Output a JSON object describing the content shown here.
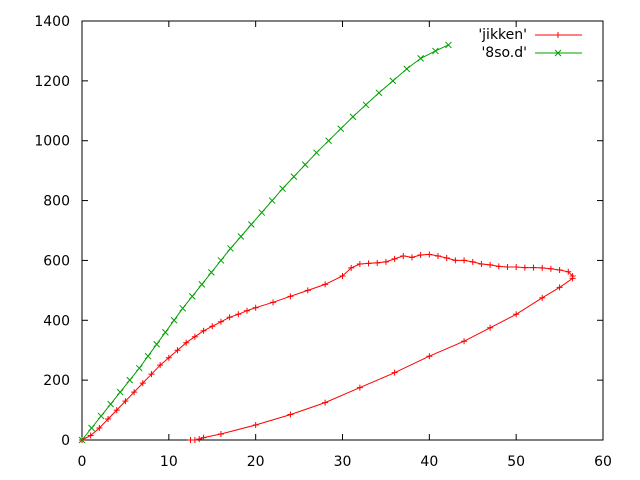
{
  "chart_data": {
    "type": "line",
    "title": "",
    "xlabel": "",
    "ylabel": "",
    "xlim": [
      0,
      60
    ],
    "ylim": [
      0,
      1400
    ],
    "x_ticks": [
      "0",
      "10",
      "20",
      "30",
      "40",
      "50",
      "60"
    ],
    "y_ticks": [
      "0",
      "200",
      "400",
      "600",
      "800",
      "1000",
      "1200",
      "1400"
    ],
    "grid": false,
    "legend_position": "top-right",
    "series": [
      {
        "name": "'jikken'",
        "color": "#ff0000",
        "marker": "plus",
        "points": [
          [
            0,
            0
          ],
          [
            1,
            15
          ],
          [
            2,
            40
          ],
          [
            3,
            70
          ],
          [
            4,
            100
          ],
          [
            5,
            130
          ],
          [
            6,
            160
          ],
          [
            7,
            190
          ],
          [
            8,
            220
          ],
          [
            9,
            250
          ],
          [
            10,
            275
          ],
          [
            11,
            300
          ],
          [
            12,
            325
          ],
          [
            13,
            345
          ],
          [
            14,
            365
          ],
          [
            15,
            380
          ],
          [
            16,
            395
          ],
          [
            17,
            410
          ],
          [
            18,
            420
          ],
          [
            19,
            432
          ],
          [
            20,
            442
          ],
          [
            22,
            460
          ],
          [
            24,
            480
          ],
          [
            26,
            500
          ],
          [
            28,
            520
          ],
          [
            30,
            548
          ],
          [
            31,
            575
          ],
          [
            32,
            588
          ],
          [
            33,
            590
          ],
          [
            34,
            592
          ],
          [
            35,
            595
          ],
          [
            36,
            605
          ],
          [
            37,
            615
          ],
          [
            38,
            610
          ],
          [
            39,
            618
          ],
          [
            40,
            620
          ],
          [
            41,
            615
          ],
          [
            42,
            608
          ],
          [
            43,
            600
          ],
          [
            44,
            600
          ],
          [
            45,
            595
          ],
          [
            46,
            588
          ],
          [
            47,
            585
          ],
          [
            48,
            580
          ],
          [
            49,
            578
          ],
          [
            50,
            578
          ],
          [
            51,
            576
          ],
          [
            52,
            576
          ],
          [
            53,
            575
          ],
          [
            54,
            572
          ],
          [
            55,
            568
          ],
          [
            56,
            562
          ],
          [
            56.5,
            548
          ],
          [
            56.5,
            540
          ],
          [
            55,
            510
          ],
          [
            53,
            475
          ],
          [
            50,
            420
          ],
          [
            47,
            375
          ],
          [
            44,
            330
          ],
          [
            40,
            280
          ],
          [
            36,
            225
          ],
          [
            32,
            175
          ],
          [
            28,
            125
          ],
          [
            24,
            85
          ],
          [
            20,
            50
          ],
          [
            16,
            20
          ],
          [
            14,
            8
          ],
          [
            13.5,
            3
          ],
          [
            13,
            0
          ],
          [
            12.5,
            0
          ]
        ]
      },
      {
        "name": "'8so.d'",
        "color": "#00a000",
        "marker": "cross",
        "points": [
          [
            0,
            0
          ],
          [
            1.1,
            40
          ],
          [
            2.2,
            80
          ],
          [
            3.3,
            120
          ],
          [
            4.4,
            160
          ],
          [
            5.5,
            200
          ],
          [
            6.6,
            240
          ],
          [
            7.6,
            280
          ],
          [
            8.6,
            320
          ],
          [
            9.6,
            360
          ],
          [
            10.6,
            400
          ],
          [
            11.6,
            440
          ],
          [
            12.7,
            480
          ],
          [
            13.8,
            520
          ],
          [
            14.9,
            560
          ],
          [
            16.0,
            600
          ],
          [
            17.1,
            640
          ],
          [
            18.3,
            680
          ],
          [
            19.5,
            720
          ],
          [
            20.7,
            760
          ],
          [
            21.9,
            800
          ],
          [
            23.1,
            840
          ],
          [
            24.4,
            880
          ],
          [
            25.7,
            920
          ],
          [
            27.0,
            960
          ],
          [
            28.4,
            1000
          ],
          [
            29.8,
            1040
          ],
          [
            31.2,
            1080
          ],
          [
            32.7,
            1120
          ],
          [
            34.2,
            1160
          ],
          [
            35.8,
            1200
          ],
          [
            37.4,
            1240
          ],
          [
            39.0,
            1275
          ],
          [
            40.7,
            1300
          ],
          [
            42.2,
            1320
          ]
        ]
      }
    ]
  }
}
